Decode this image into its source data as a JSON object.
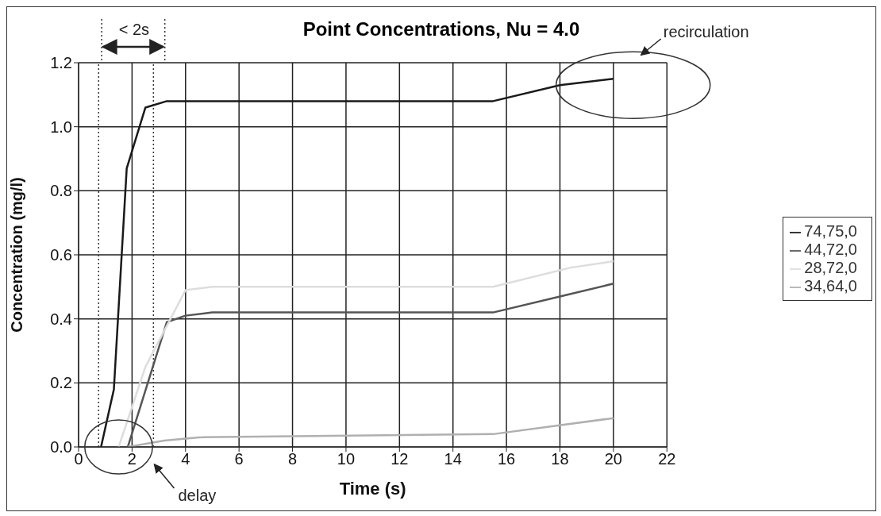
{
  "chart_data": {
    "type": "line",
    "title": "Point Concentrations, Nu = 4.0",
    "xlabel": "Time (s)",
    "ylabel": "Concentration (mg/l)",
    "series": [
      {
        "name": "74,75,0",
        "color": "#1a1a1a",
        "x": [
          0.84,
          1.32,
          1.8,
          2.5,
          3.3,
          15.5,
          18,
          20
        ],
        "values": [
          0,
          0.18,
          0.87,
          1.06,
          1.08,
          1.08,
          1.13,
          1.15
        ]
      },
      {
        "name": "44,72,0",
        "color": "#555555",
        "x": [
          1.84,
          3.3,
          4,
          5,
          15.5,
          18,
          20
        ],
        "values": [
          0,
          0.39,
          0.41,
          0.42,
          0.42,
          0.47,
          0.51
        ]
      },
      {
        "name": "28,72,0",
        "color": "#dddddd",
        "x": [
          1.5,
          2.5,
          4,
          5,
          15.5,
          18.4,
          20
        ],
        "values": [
          0,
          0.25,
          0.49,
          0.5,
          0.5,
          0.56,
          0.58
        ]
      },
      {
        "name": "34,64,0",
        "color": "#b0b0b0",
        "x": [
          1.84,
          3.2,
          4.5,
          15.5,
          20
        ],
        "values": [
          0,
          0.02,
          0.03,
          0.04,
          0.09
        ]
      }
    ],
    "xlim": [
      0,
      22
    ],
    "xticks": [
      0,
      2,
      4,
      6,
      8,
      10,
      12,
      14,
      16,
      18,
      20,
      22
    ],
    "ylim": [
      0,
      1.2
    ],
    "yticks": [
      {
        "value": 0,
        "label": "0.0"
      },
      {
        "value": 0.2,
        "label": "0.2"
      },
      {
        "value": 0.4,
        "label": "0.4"
      },
      {
        "value": 0.6,
        "label": "0.6"
      },
      {
        "value": 0.8,
        "label": "0.8"
      },
      {
        "value": 1,
        "label": "1.0"
      },
      {
        "value": 1.2,
        "label": "1.2"
      }
    ],
    "ref_lines": [
      {
        "axis": "x",
        "value": 0.75,
        "line_style": "dotted",
        "color": "#333333"
      },
      {
        "axis": "x",
        "value": 2.8,
        "line_style": "dotted",
        "color": "#333333"
      }
    ],
    "annotations": [
      "< 2s",
      "recirculation",
      "delay"
    ],
    "grid": true,
    "legend": "right",
    "marker": "none",
    "line_style": "solid"
  }
}
